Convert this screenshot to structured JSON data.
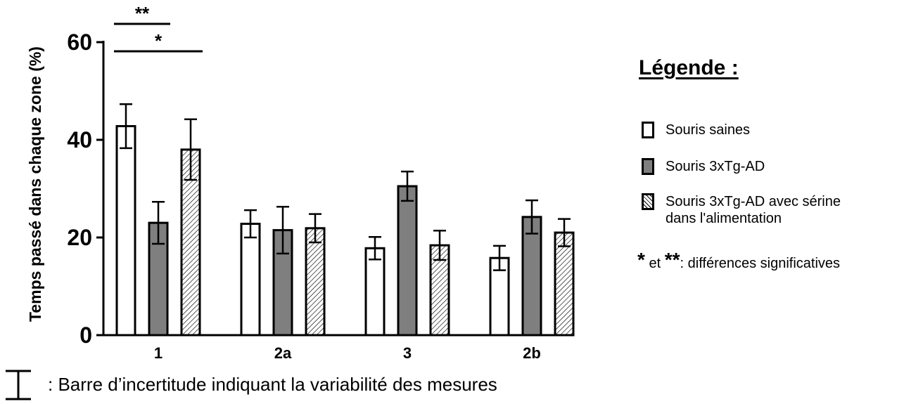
{
  "chart_data": {
    "type": "bar",
    "categories": [
      "1",
      "2a",
      "3",
      "2b"
    ],
    "series": [
      {
        "name": "Souris saines",
        "values": [
          42.8,
          22.8,
          17.8,
          15.8
        ],
        "errors": [
          4.5,
          2.8,
          2.3,
          2.5
        ],
        "color": "#ffffff",
        "pattern": "none"
      },
      {
        "name": "Souris 3xTg-AD",
        "values": [
          23.0,
          21.5,
          30.5,
          24.2
        ],
        "errors": [
          4.3,
          4.8,
          3.0,
          3.4
        ],
        "color": "#7f7f7f",
        "pattern": "none"
      },
      {
        "name": "Souris 3xTg-AD avec sérine dans l'alimentation",
        "values": [
          38.0,
          21.9,
          18.4,
          21.0
        ],
        "errors": [
          6.2,
          2.9,
          3.0,
          2.8
        ],
        "color": "#ffffff",
        "pattern": "hatch"
      }
    ],
    "ylabel": "Temps passé dans chaque zone (%)",
    "xlabel": "",
    "ylim": [
      0,
      60
    ],
    "yticks": [
      0,
      20,
      40,
      60
    ],
    "significance": [
      {
        "label": "**",
        "between": [
          "Souris saines",
          "Souris 3xTg-AD"
        ],
        "category": "1"
      },
      {
        "label": "*",
        "between": [
          "Souris saines",
          "Souris 3xTg-AD avec sérine dans l'alimentation"
        ],
        "category": "1"
      }
    ],
    "legend_position": "right",
    "grid": false
  },
  "legend": {
    "title": "Légende :",
    "items": [
      {
        "label": "Souris saines"
      },
      {
        "label": "Souris 3xTg-AD"
      },
      {
        "label": "Souris 3xTg-AD avec sérine dans l'alimentation"
      }
    ],
    "significance_star1": "*",
    "significance_et": "et",
    "significance_star2": "**",
    "significance_text": ": différences significatives"
  },
  "note": {
    "text": ": Barre d’incertitude indiquant la variabilité des mesures"
  }
}
